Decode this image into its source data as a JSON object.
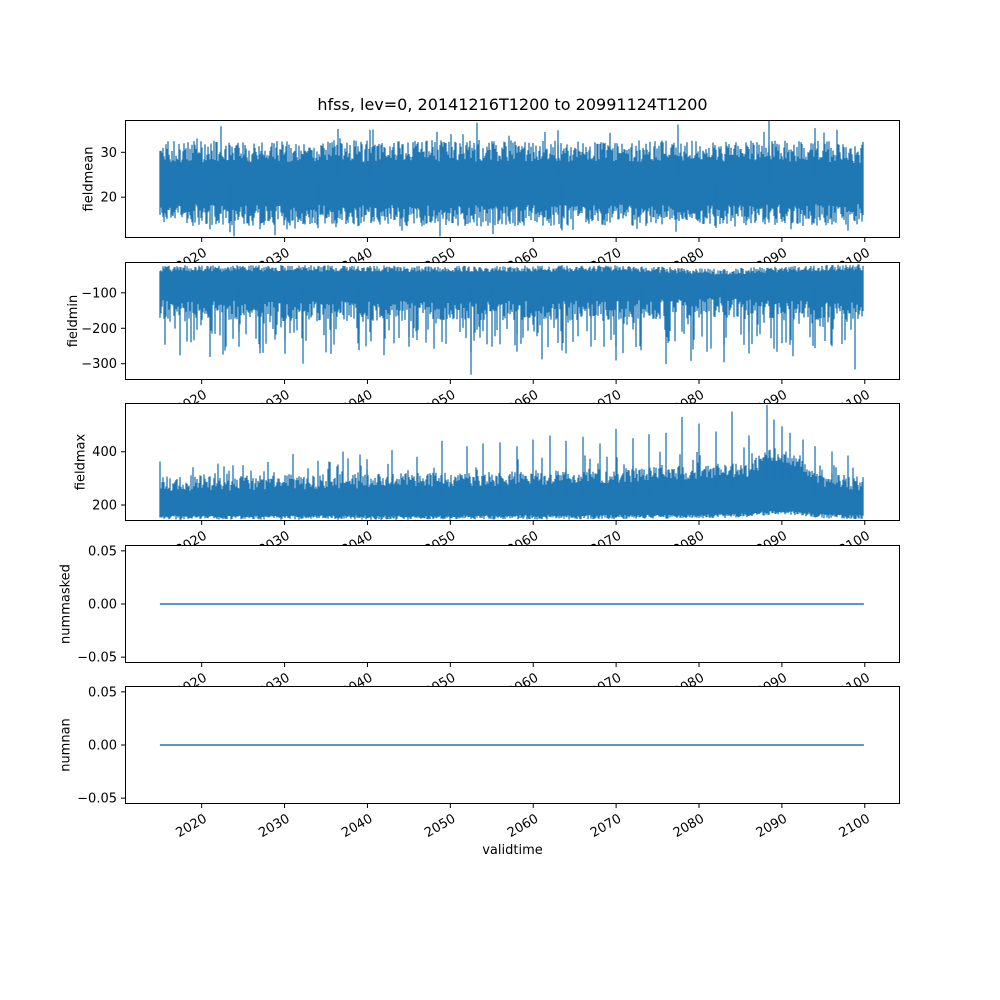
{
  "chart_meta": {
    "title": "hfss, lev=0, 20141216T1200 to 20991124T1200",
    "xlabel": "validtime",
    "xlim": [
      2010.75,
      2104.25
    ],
    "x_ticks": [
      {
        "v": 2020,
        "label": "2020"
      },
      {
        "v": 2030,
        "label": "2030"
      },
      {
        "v": 2040,
        "label": "2040"
      },
      {
        "v": 2050,
        "label": "2050"
      },
      {
        "v": 2060,
        "label": "2060"
      },
      {
        "v": 2070,
        "label": "2070"
      },
      {
        "v": 2080,
        "label": "2080"
      },
      {
        "v": 2090,
        "label": "2090"
      },
      {
        "v": 2100,
        "label": "2100"
      }
    ],
    "line_color": "#1f77b4",
    "axis_color": "#000000",
    "text_color": "#000000",
    "background": "#ffffff",
    "grid": false,
    "legend": false
  },
  "chart_data": [
    {
      "name": "fieldmean",
      "type": "line",
      "ylabel": "fieldmean",
      "ylim": [
        10.9,
        37.2
      ],
      "yticks": [
        {
          "v": 20,
          "label": "20"
        },
        {
          "v": 30,
          "label": "30"
        }
      ],
      "x_range": [
        2014.96,
        2099.9
      ],
      "render": "noise",
      "seed": 11,
      "envelope": {
        "x": [
          2015,
          2030,
          2050,
          2070,
          2090,
          2100
        ],
        "lo": [
          16.0,
          15.9,
          15.8,
          16.0,
          16.0,
          16.2
        ],
        "hi": [
          30.4,
          30.5,
          30.6,
          30.5,
          30.6,
          30.2
        ]
      },
      "jitter": {
        "lo": 2.4,
        "hi": 2.4,
        "down_p": 0.05,
        "down_amp": 3.0,
        "up_p": 0.06,
        "up_amp": 3.4
      },
      "spikes_high": [
        [
          2022.3,
          35.8
        ],
        [
          2036.5,
          35.2
        ],
        [
          2040.3,
          35.0
        ],
        [
          2053.2,
          36.6
        ],
        [
          2063.0,
          34.9
        ],
        [
          2077.5,
          36.2
        ],
        [
          2088.4,
          37.0
        ],
        [
          2094.0,
          35.4
        ]
      ],
      "spikes_low": [
        [
          2023.4,
          12.2
        ],
        [
          2034.0,
          13.1
        ],
        [
          2055.2,
          11.8
        ],
        [
          2063.5,
          12.6
        ],
        [
          2082.0,
          13.2
        ],
        [
          2096.0,
          13.9
        ]
      ]
    },
    {
      "name": "fieldmin",
      "type": "line",
      "ylabel": "fieldmin",
      "ylim": [
        -346,
        -13
      ],
      "yticks": [
        {
          "v": -100,
          "label": "−100"
        },
        {
          "v": -200,
          "label": "−200"
        },
        {
          "v": -300,
          "label": "−300"
        }
      ],
      "x_range": [
        2014.96,
        2099.9
      ],
      "render": "noise",
      "seed": 23,
      "envelope": {
        "x": [
          2015,
          2030,
          2050,
          2070,
          2083,
          2090,
          2100
        ],
        "hi": [
          -30,
          -30,
          -31,
          -30,
          -40,
          -32,
          -27
        ],
        "lo": [
          -148,
          -152,
          -150,
          -150,
          -140,
          -148,
          -152
        ]
      },
      "jitter": {
        "lo": 28,
        "hi": 9,
        "down_p": 0.3,
        "down_amp": 105,
        "up_p": 0,
        "up_amp": 0
      },
      "spikes_high": [],
      "spikes_low": [
        [
          2021.0,
          -281
        ],
        [
          2024.5,
          -252
        ],
        [
          2027.0,
          -256
        ],
        [
          2030.0,
          -272
        ],
        [
          2032.2,
          -300
        ],
        [
          2036.0,
          -246
        ],
        [
          2039.0,
          -262
        ],
        [
          2042.0,
          -276
        ],
        [
          2045.0,
          -252
        ],
        [
          2048.0,
          -258
        ],
        [
          2052.5,
          -331
        ],
        [
          2055.0,
          -252
        ],
        [
          2058.0,
          -266
        ],
        [
          2061.0,
          -288
        ],
        [
          2064.0,
          -271
        ],
        [
          2067.0,
          -252
        ],
        [
          2070.0,
          -291
        ],
        [
          2073.0,
          -262
        ],
        [
          2076.0,
          -301
        ],
        [
          2079.0,
          -292
        ],
        [
          2081.0,
          -266
        ],
        [
          2083.0,
          -296
        ],
        [
          2086.0,
          -271
        ],
        [
          2089.0,
          -258
        ],
        [
          2091.0,
          -247
        ],
        [
          2094.0,
          -256
        ],
        [
          2096.0,
          -251
        ],
        [
          2098.8,
          -316
        ]
      ]
    },
    {
      "name": "fieldmax",
      "type": "line",
      "ylabel": "fieldmax",
      "ylim": [
        140,
        583
      ],
      "yticks": [
        {
          "v": 200,
          "label": "200"
        },
        {
          "v": 400,
          "label": "400"
        }
      ],
      "x_range": [
        2014.96,
        2099.9
      ],
      "render": "noise",
      "seed": 37,
      "envelope": {
        "x": [
          2015,
          2025,
          2035,
          2045,
          2055,
          2065,
          2075,
          2082,
          2086,
          2089,
          2092,
          2095,
          2100
        ],
        "lo": [
          153,
          152,
          153,
          152,
          153,
          154,
          156,
          158,
          162,
          172,
          168,
          158,
          153
        ],
        "hi": [
          283,
          286,
          290,
          295,
          302,
          310,
          318,
          330,
          336,
          398,
          358,
          300,
          284
        ]
      },
      "jitter": {
        "lo": 8,
        "hi": 28,
        "down_p": 0,
        "down_amp": 0,
        "up_p": 0.12,
        "up_amp": 75
      },
      "spikes_high": [
        [
          2019,
          342
        ],
        [
          2022,
          356
        ],
        [
          2025,
          350
        ],
        [
          2028,
          362
        ],
        [
          2031,
          391
        ],
        [
          2034,
          366
        ],
        [
          2037,
          401
        ],
        [
          2040,
          372
        ],
        [
          2043,
          406
        ],
        [
          2046,
          381
        ],
        [
          2049,
          441
        ],
        [
          2052,
          421
        ],
        [
          2054,
          431
        ],
        [
          2056,
          436
        ],
        [
          2058,
          421
        ],
        [
          2060,
          446
        ],
        [
          2062,
          461
        ],
        [
          2064,
          441
        ],
        [
          2066,
          456
        ],
        [
          2068,
          431
        ],
        [
          2070,
          486
        ],
        [
          2072,
          451
        ],
        [
          2074,
          466
        ],
        [
          2076,
          471
        ],
        [
          2078,
          531
        ],
        [
          2080,
          506
        ],
        [
          2082,
          476
        ],
        [
          2084,
          551
        ],
        [
          2086,
          461
        ],
        [
          2088.2,
          576
        ],
        [
          2089,
          521
        ],
        [
          2090,
          496
        ],
        [
          2091,
          471
        ],
        [
          2092.5,
          446
        ],
        [
          2094,
          421
        ],
        [
          2096,
          401
        ],
        [
          2098,
          386
        ]
      ],
      "spikes_low": []
    },
    {
      "name": "nummasked",
      "type": "line",
      "ylabel": "nummasked",
      "ylim": [
        -0.0555,
        0.0555
      ],
      "yticks": [
        {
          "v": 0.05,
          "label": "0.05"
        },
        {
          "v": 0,
          "label": "0.00"
        },
        {
          "v": -0.05,
          "label": "−0.05"
        }
      ],
      "x_range": [
        2014.96,
        2099.9
      ],
      "render": "flat",
      "value": 0
    },
    {
      "name": "numnan",
      "type": "line",
      "ylabel": "numnan",
      "ylim": [
        -0.0555,
        0.0555
      ],
      "yticks": [
        {
          "v": 0.05,
          "label": "0.05"
        },
        {
          "v": 0,
          "label": "0.00"
        },
        {
          "v": -0.05,
          "label": "−0.05"
        }
      ],
      "x_range": [
        2014.96,
        2099.9
      ],
      "render": "flat",
      "value": 0
    }
  ]
}
